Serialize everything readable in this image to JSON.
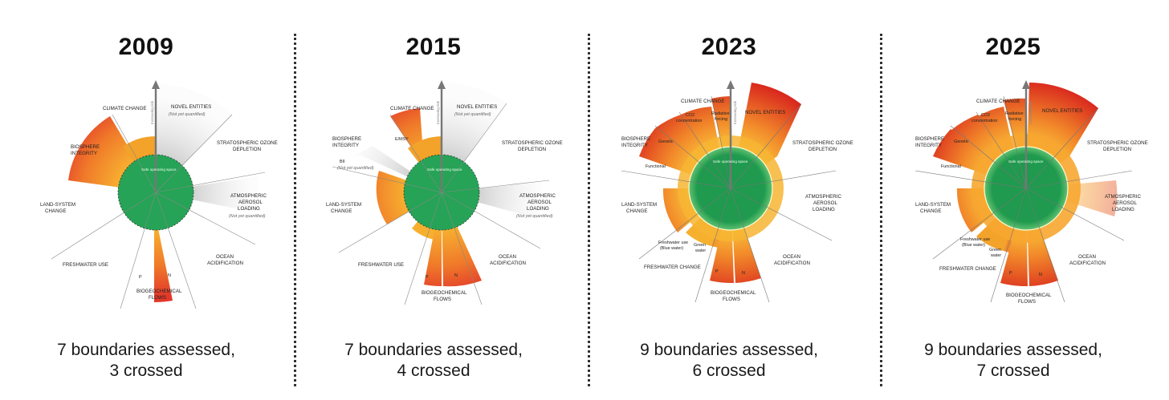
{
  "panels": [
    {
      "year": "2009",
      "caption_line1": "7 boundaries assessed,",
      "caption_line2": "3 crossed",
      "labels": {
        "climate": "CLIMATE CHANGE",
        "novel": "NOVEL ENTITIES",
        "novel_note": "(Not yet quantified)",
        "ozone1": "STRATOSPHERIC OZONE",
        "ozone2": "DEPLETION",
        "aerosol1": "ATMOSPHERIC",
        "aerosol2": "AEROSOL",
        "aerosol3": "LOADING",
        "aerosol_note": "(Not yet quantified)",
        "ocean1": "OCEAN",
        "ocean2": "ACIDIFICATION",
        "bio1": "BIOGEOCHEMICAL",
        "bio2": "FLOWS",
        "p": "P",
        "n": "N",
        "fresh": "FRESHWATER USE",
        "land1": "LAND-SYSTEM",
        "land2": "CHANGE",
        "biosphere1": "BIOSPHERE",
        "biosphere2": "INTEGRITY",
        "arrow": "Increasing risk",
        "sos": "Safe operating space"
      }
    },
    {
      "year": "2015",
      "caption_line1": "7 boundaries assessed,",
      "caption_line2": "4 crossed",
      "labels": {
        "climate": "CLIMATE CHANGE",
        "novel": "NOVEL ENTITIES",
        "novel_note": "(Not yet quantified)",
        "ozone1": "STRATOSPHERIC OZONE",
        "ozone2": "DEPLETION",
        "aerosol1": "ATMOSPHERIC",
        "aerosol2": "AEROSOL",
        "aerosol3": "LOADING",
        "aerosol_note": "(Not yet quantified)",
        "ocean1": "OCEAN",
        "ocean2": "ACIDIFICATION",
        "bio1": "BIOGEOCHEMICAL",
        "bio2": "FLOWS",
        "p": "P",
        "n": "N",
        "fresh": "FRESHWATER USE",
        "land1": "LAND-SYSTEM",
        "land2": "CHANGE",
        "biosphere1": "BIOSPHERE",
        "biosphere2": "INTEGRITY",
        "emsy": "E/MSY",
        "bii": "BII",
        "bii_note": "(Not yet quantified)",
        "arrow": "Increasing risk",
        "sos": "Safe operating space"
      }
    },
    {
      "year": "2023",
      "caption_line1": "9 boundaries assessed,",
      "caption_line2": "6 crossed",
      "labels": {
        "climate": "CLIMATE CHANGE",
        "co2a": "CO2",
        "co2b": "concentration",
        "rad1": "Radiative",
        "rad2": "forcing",
        "novel": "NOVEL ENTITIES",
        "ozone1": "STRATOSPHERIC OZONE",
        "ozone2": "DEPLETION",
        "aerosol1": "ATMOSPHERIC",
        "aerosol2": "AEROSOL",
        "aerosol3": "LOADING",
        "ocean1": "OCEAN",
        "ocean2": "ACIDIFICATION",
        "bio1": "BIOGEOCHEMICAL",
        "bio2": "FLOWS",
        "p": "P",
        "n": "N",
        "fresh": "FRESHWATER CHANGE",
        "blue1": "Freshwater use",
        "blue2": "(Blue water)",
        "green1": "Green",
        "green2": "water",
        "land1": "LAND-SYSTEM",
        "land2": "CHANGE",
        "biosphere1": "BIOSPHERE",
        "biosphere2": "INTEGRITY",
        "genetic": "Genetic",
        "functional": "Functional",
        "arrow": "Increasing risk",
        "sos": "Safe operating space"
      }
    },
    {
      "year": "2025",
      "caption_line1": "9 boundaries assessed,",
      "caption_line2": "7 crossed",
      "labels": {
        "climate": "CLIMATE CHANGE",
        "co2a": "CO2",
        "co2b": "concentration",
        "rad1": "Radiative",
        "rad2": "forcing",
        "novel": "NOVEL ENTITIES",
        "ozone1": "STRATOSPHERIC OZONE",
        "ozone2": "DEPLETION",
        "aerosol1": "ATMOSPHERIC",
        "aerosol2": "AEROSOL",
        "aerosol3": "LOADING",
        "ocean1": "OCEAN",
        "ocean2": "ACIDIFICATION",
        "bio1": "BIOGEOCHEMICAL",
        "bio2": "FLOWS",
        "p": "P",
        "n": "N",
        "fresh": "FRESHWATER CHANGE",
        "blue1": "Freshwater use",
        "blue2": "(Blue water)",
        "green1": "Green",
        "green2": "water",
        "land1": "LAND-SYSTEM",
        "land2": "CHANGE",
        "biosphere1": "BIOSPHERE",
        "biosphere2": "INTEGRITY",
        "genetic": "Genetic",
        "functional": "Functional",
        "arrow": "Increasing risk",
        "sos": "Safe operating space"
      }
    }
  ],
  "colors": {
    "safe": "#1f9a4e",
    "increasing": "#f59b28",
    "high_risk": "#d9281e",
    "not_quantified": "#d8d8d8"
  }
}
